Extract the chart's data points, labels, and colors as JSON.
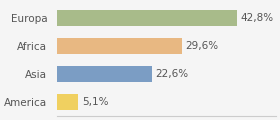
{
  "categories": [
    "Europa",
    "Africa",
    "Asia",
    "America"
  ],
  "values": [
    42.8,
    29.6,
    22.6,
    5.1
  ],
  "labels": [
    "42,8%",
    "29,6%",
    "22,6%",
    "5,1%"
  ],
  "bar_colors": [
    "#a8bb8a",
    "#e8b882",
    "#7b9dc4",
    "#f0d060"
  ],
  "background_color": "#f5f5f5",
  "xlim": [
    0,
    52
  ],
  "label_fontsize": 7.5,
  "tick_fontsize": 7.5
}
